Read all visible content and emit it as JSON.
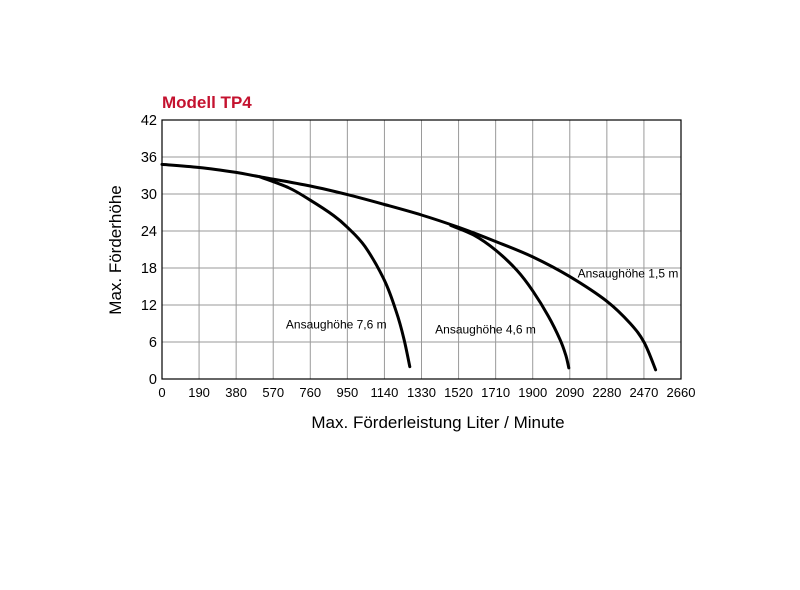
{
  "chart_data": {
    "type": "line",
    "title": "Modell TP4",
    "title_color": "#c4122f",
    "xlabel": "Max. Förderleistung Liter / Minute",
    "ylabel": "Max. Förderhöhe",
    "xlim": [
      0,
      2660
    ],
    "ylim": [
      0,
      42
    ],
    "x_ticks": [
      0,
      190,
      380,
      570,
      760,
      950,
      1140,
      1330,
      1520,
      1710,
      1900,
      2090,
      2280,
      2470,
      2660
    ],
    "y_ticks": [
      0,
      6,
      12,
      18,
      24,
      30,
      36,
      42
    ],
    "grid": true,
    "series": [
      {
        "name": "Ansaughöhe 1,5 m",
        "x": [
          0,
          190,
          380,
          500,
          760,
          950,
          1140,
          1330,
          1520,
          1710,
          1900,
          2090,
          2280,
          2400,
          2470,
          2530
        ],
        "y": [
          34.8,
          34.3,
          33.5,
          32.8,
          31.3,
          29.9,
          28.3,
          26.6,
          24.6,
          22.3,
          19.8,
          16.6,
          12.6,
          9.0,
          6.0,
          1.5
        ]
      },
      {
        "name": "Ansaughöhe 7,6 m",
        "x": [
          500,
          650,
          760,
          880,
          950,
          1040,
          1140,
          1200,
          1240,
          1270
        ],
        "y": [
          32.8,
          31.0,
          29.0,
          26.5,
          24.6,
          21.5,
          16.0,
          11.0,
          6.5,
          2.0
        ]
      },
      {
        "name": "Ansaughöhe 4,6 m",
        "x": [
          1480,
          1600,
          1710,
          1820,
          1900,
          1980,
          2040,
          2070,
          2085
        ],
        "y": [
          24.9,
          23.3,
          20.9,
          17.6,
          14.3,
          10.2,
          6.4,
          3.8,
          1.8
        ]
      }
    ],
    "annotations": [
      {
        "text": "Ansaughöhe 1,5 m",
        "x": 2130,
        "y": 16.5
      },
      {
        "text": "Ansaughöhe 7,6 m",
        "x": 635,
        "y": 8.2
      },
      {
        "text": "Ansaughöhe 4,6 m",
        "x": 1400,
        "y": 7.4
      }
    ]
  }
}
